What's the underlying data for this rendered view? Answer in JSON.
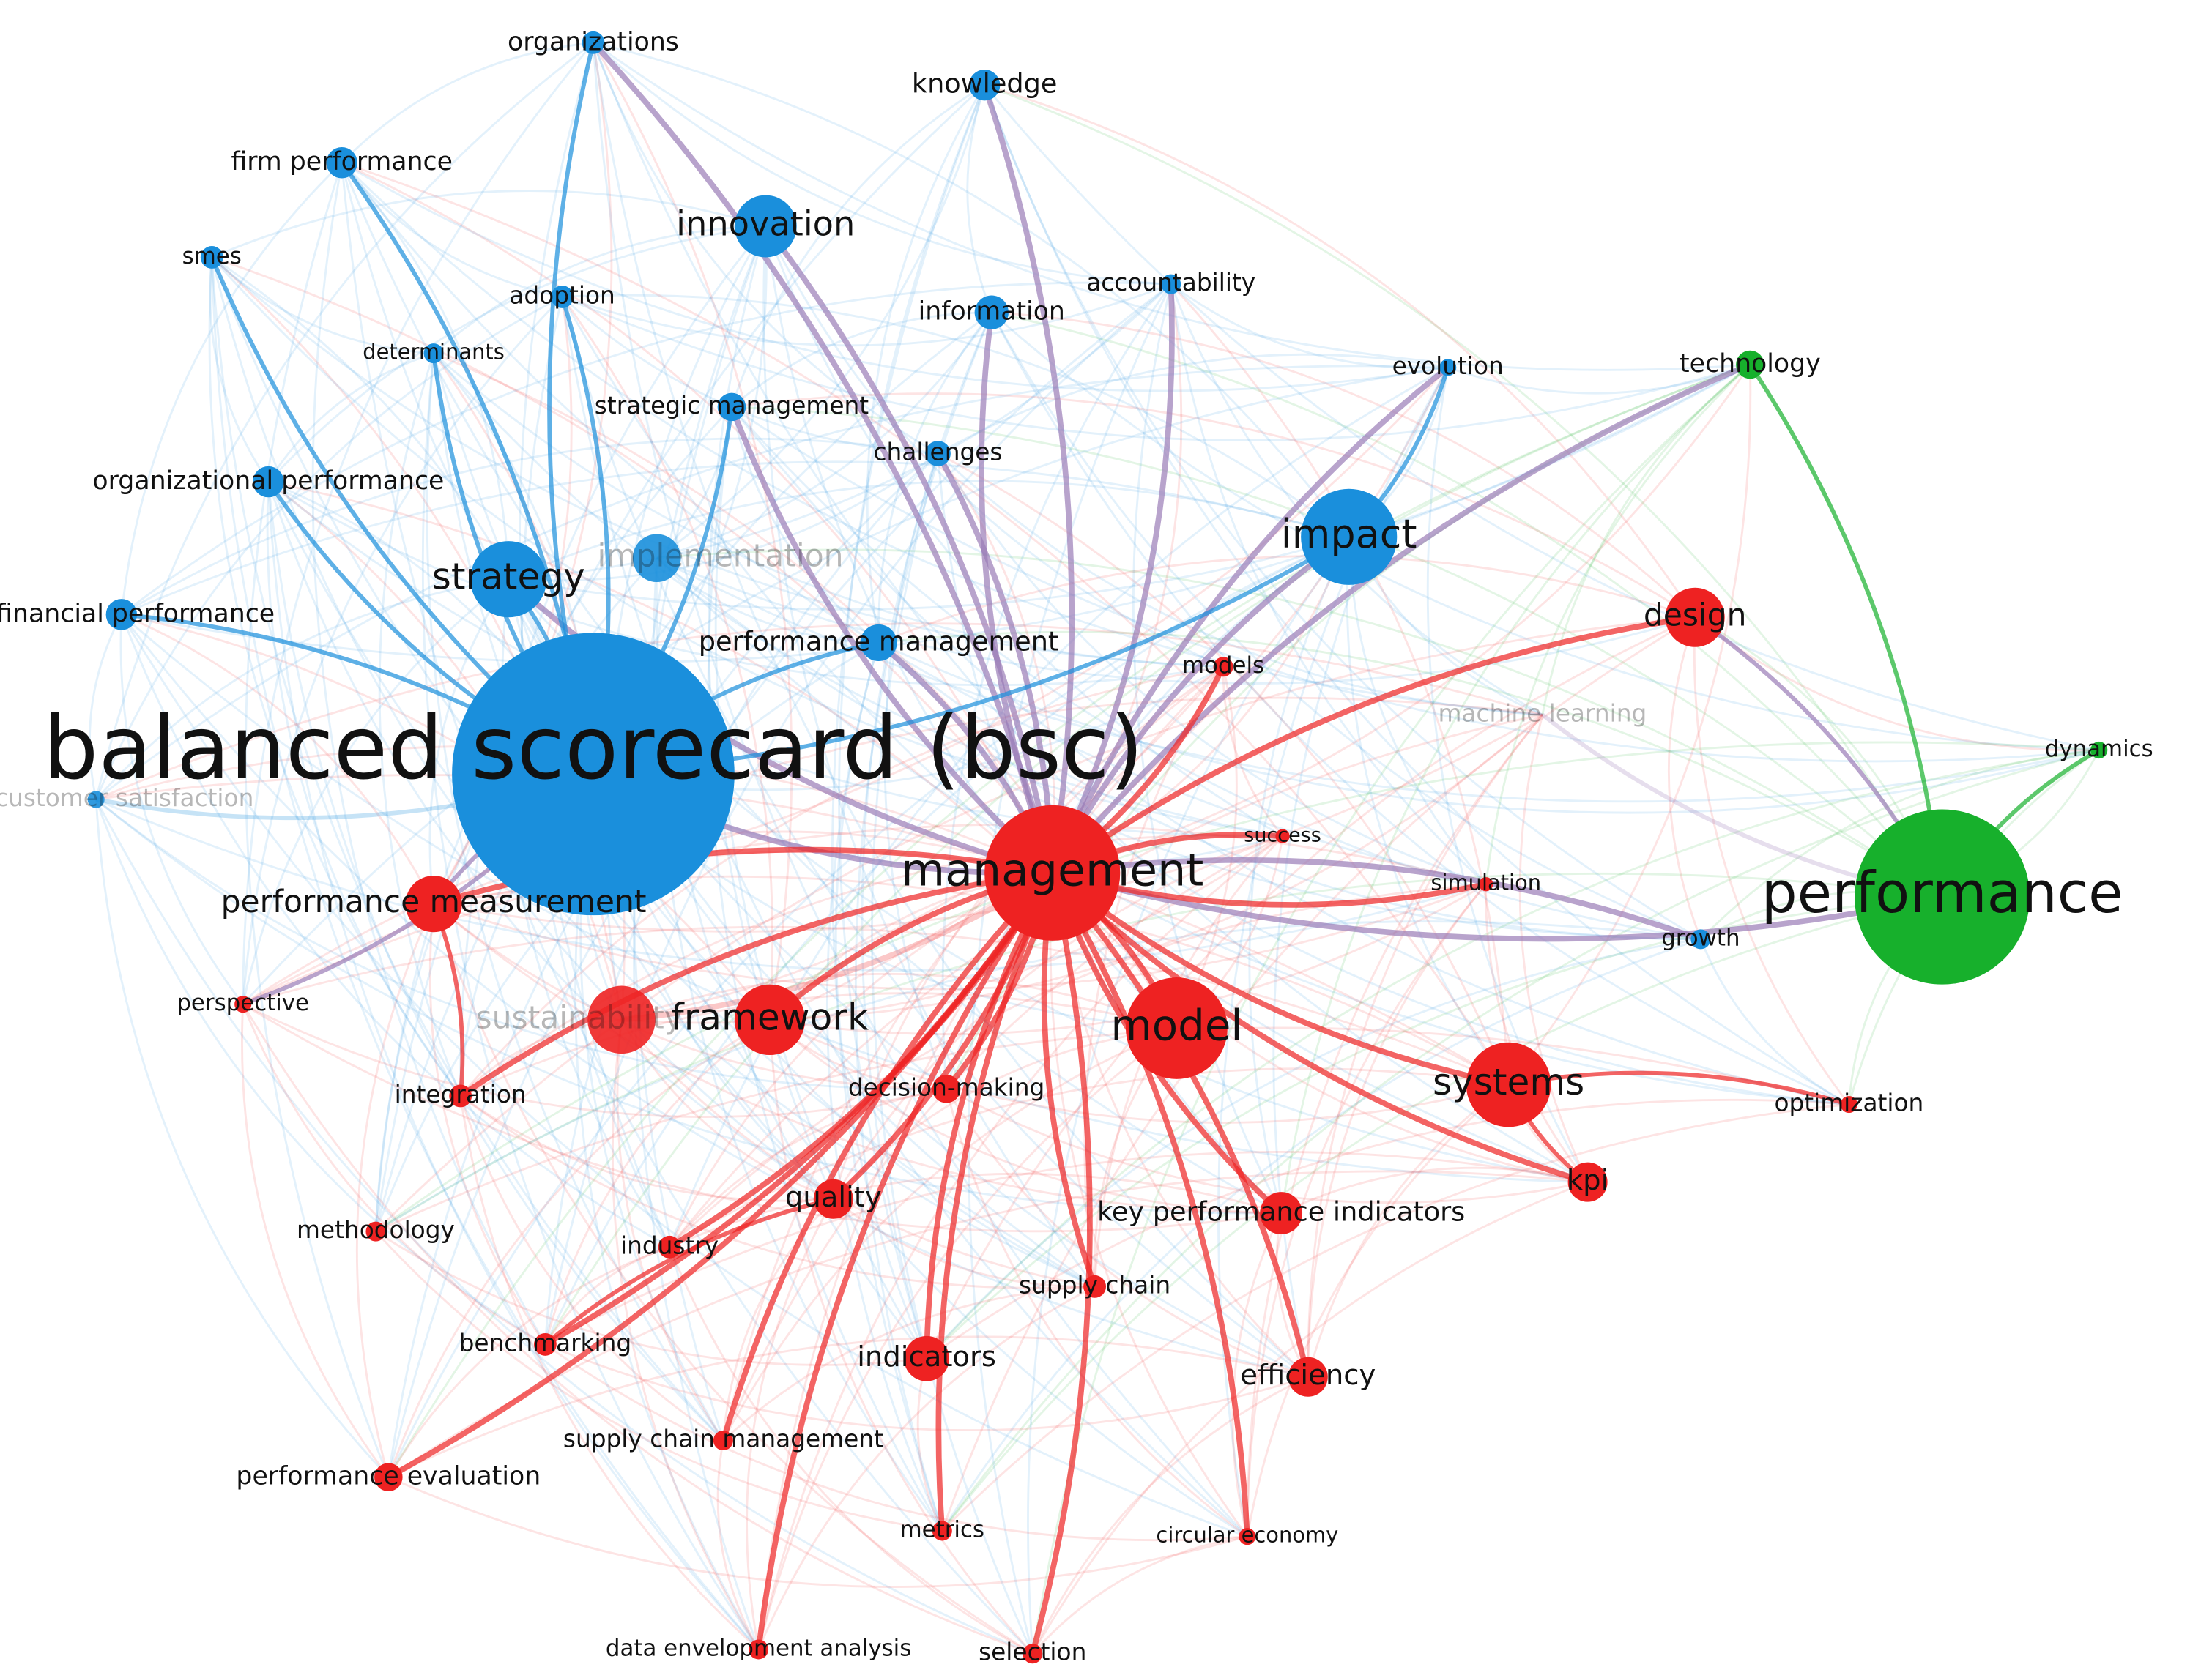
{
  "nodes": [
    {
      "label": "balanced scorecard (bsc)",
      "color": "#1a8fdc"
    },
    {
      "label": "management",
      "color": "#ee2222"
    },
    {
      "label": "performance",
      "color": "#17b02c"
    },
    {
      "label": "impact",
      "color": "#1a8fdc"
    },
    {
      "label": "innovation",
      "color": "#1a8fdc"
    },
    {
      "label": "strategy",
      "color": "#1a8fdc"
    },
    {
      "label": "implementation",
      "color": "#1a8fdc",
      "faded": true
    },
    {
      "label": "framework",
      "color": "#ee2222"
    },
    {
      "label": "model",
      "color": "#ee2222"
    },
    {
      "label": "systems",
      "color": "#ee2222"
    },
    {
      "label": "design",
      "color": "#ee2222"
    },
    {
      "label": "performance measurement",
      "color": "#ee2222"
    },
    {
      "label": "sustainability",
      "color": "#ee2222",
      "faded": true
    },
    {
      "label": "organizations",
      "color": "#1a8fdc"
    },
    {
      "label": "knowledge",
      "color": "#1a8fdc"
    },
    {
      "label": "firm performance",
      "color": "#1a8fdc"
    },
    {
      "label": "smes",
      "color": "#1a8fdc"
    },
    {
      "label": "adoption",
      "color": "#1a8fdc"
    },
    {
      "label": "information",
      "color": "#1a8fdc"
    },
    {
      "label": "accountability",
      "color": "#1a8fdc"
    },
    {
      "label": "determinants",
      "color": "#1a8fdc"
    },
    {
      "label": "evolution",
      "color": "#1a8fdc"
    },
    {
      "label": "strategic management",
      "color": "#1a8fdc"
    },
    {
      "label": "challenges",
      "color": "#1a8fdc"
    },
    {
      "label": "organizational performance",
      "color": "#1a8fdc"
    },
    {
      "label": "financial performance",
      "color": "#1a8fdc"
    },
    {
      "label": "performance management",
      "color": "#1a8fdc"
    },
    {
      "label": "technology",
      "color": "#17b02c"
    },
    {
      "label": "models",
      "color": "#ee2222"
    },
    {
      "label": "machine learning",
      "color": "#ee2222",
      "faded": true
    },
    {
      "label": "dynamics",
      "color": "#17b02c"
    },
    {
      "label": "customer satisfaction",
      "color": "#1a8fdc",
      "faded": true
    },
    {
      "label": "success",
      "color": "#ee2222"
    },
    {
      "label": "simulation",
      "color": "#ee2222"
    },
    {
      "label": "growth",
      "color": "#1a8fdc"
    },
    {
      "label": "perspective",
      "color": "#ee2222"
    },
    {
      "label": "integration",
      "color": "#ee2222"
    },
    {
      "label": "decision-making",
      "color": "#ee2222"
    },
    {
      "label": "optimization",
      "color": "#ee2222"
    },
    {
      "label": "kpi",
      "color": "#ee2222"
    },
    {
      "label": "quality",
      "color": "#ee2222"
    },
    {
      "label": "key performance indicators",
      "color": "#ee2222"
    },
    {
      "label": "methodology",
      "color": "#ee2222"
    },
    {
      "label": "industry",
      "color": "#ee2222"
    },
    {
      "label": "supply chain",
      "color": "#ee2222"
    },
    {
      "label": "benchmarking",
      "color": "#ee2222"
    },
    {
      "label": "indicators",
      "color": "#ee2222"
    },
    {
      "label": "efficiency",
      "color": "#ee2222"
    },
    {
      "label": "supply chain management",
      "color": "#ee2222"
    },
    {
      "label": "performance evaluation",
      "color": "#ee2222"
    },
    {
      "label": "metrics",
      "color": "#ee2222"
    },
    {
      "label": "circular economy",
      "color": "#ee2222"
    },
    {
      "label": "data envelopment analysis",
      "color": "#ee2222"
    },
    {
      "label": "selection",
      "color": "#ee2222"
    }
  ]
}
